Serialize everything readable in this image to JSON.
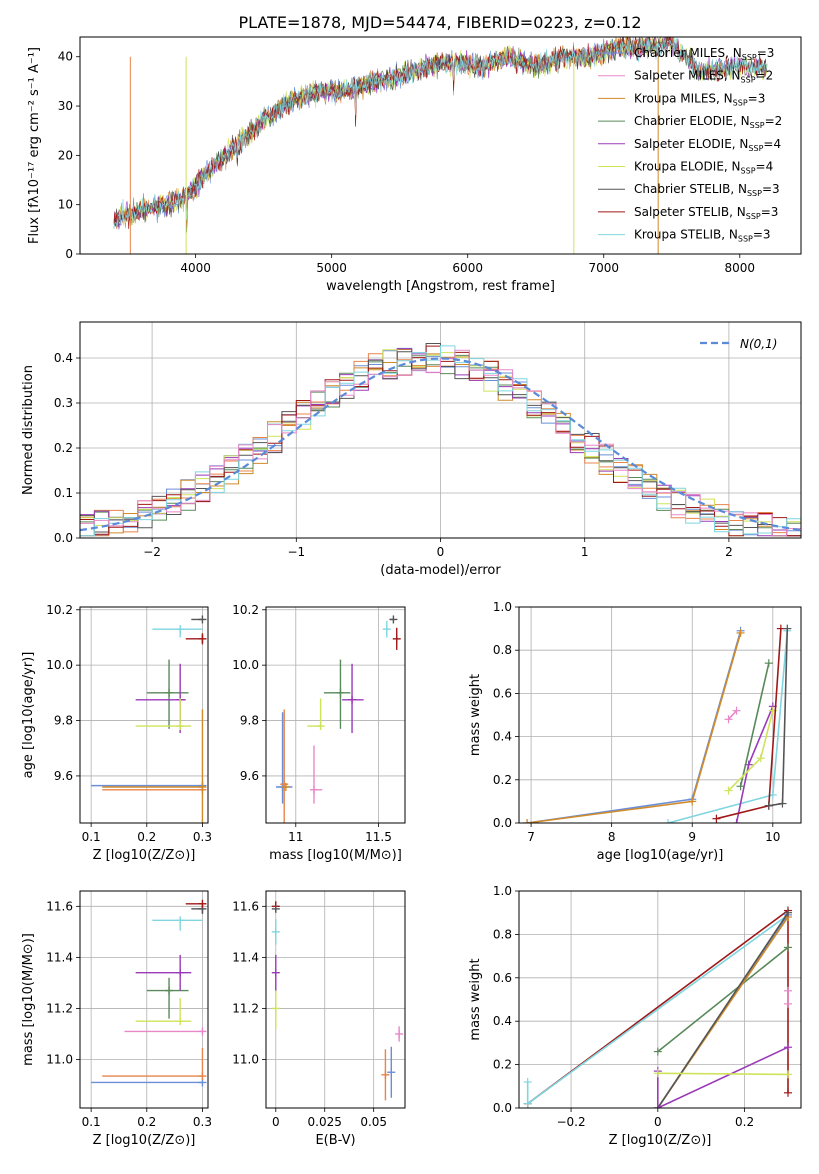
{
  "title": "PLATE=1878, MJD=54474, FIBERID=0223, z=0.12",
  "colors": {
    "chabrier_miles": "#6a8fd8",
    "salpeter_miles": "#e8844a",
    "kroupa_miles": "#d08a2a",
    "chabrier_elodie": "#5a8a5a",
    "salpeter_elodie": "#9b3ab8",
    "kroupa_elodie": "#cfe35a",
    "chabrier_stelib": "#555555",
    "salpeter_stelib": "#a01818",
    "kroupa_stelib": "#7fd6e0",
    "pink": "#e888c8",
    "normal": "#5a8ad8"
  },
  "legend": [
    {
      "label": "Chabrier MILES, N",
      "sub": "SSP",
      "suffix": "=3",
      "color": "#6a8fd8"
    },
    {
      "label": "Salpeter MILES, N",
      "sub": "SSP",
      "suffix": "=2",
      "color": "#e888c8"
    },
    {
      "label": "Kroupa MILES, N",
      "sub": "SSP",
      "suffix": "=3",
      "color": "#d08a2a"
    },
    {
      "label": "Chabrier ELODIE, N",
      "sub": "SSP",
      "suffix": "=2",
      "color": "#5a8a5a"
    },
    {
      "label": "Salpeter ELODIE, N",
      "sub": "SSP",
      "suffix": "=4",
      "color": "#9b3ab8"
    },
    {
      "label": "Kroupa ELODIE, N",
      "sub": "SSP",
      "suffix": "=4",
      "color": "#cfe35a"
    },
    {
      "label": "Chabrier STELIB, N",
      "sub": "SSP",
      "suffix": "=3",
      "color": "#555555"
    },
    {
      "label": "Salpeter STELIB, N",
      "sub": "SSP",
      "suffix": "=3",
      "color": "#a01818"
    },
    {
      "label": "Kroupa STELIB, N",
      "sub": "SSP",
      "suffix": "=3",
      "color": "#7fd6e0"
    }
  ],
  "chart_data": [
    {
      "type": "line",
      "id": "spectrum",
      "xlabel": "wavelength [Angstrom, rest frame]",
      "ylabel": "Flux [fλ10⁻¹⁷ erg cm⁻² s⁻¹ A⁻¹]",
      "xlim": [
        3150,
        8450
      ],
      "ylim": [
        0,
        44
      ],
      "xticks": [
        4000,
        5000,
        6000,
        7000,
        8000
      ],
      "yticks": [
        0,
        10,
        20,
        30,
        40
      ],
      "anchors_x": [
        3400,
        3600,
        3800,
        3950,
        4100,
        4300,
        4500,
        4700,
        4900,
        5100,
        5300,
        5500,
        5700,
        5900,
        6100,
        6300,
        6500,
        6700,
        6900,
        7100,
        7300,
        7500,
        7700,
        7900,
        8200
      ],
      "anchors_y": [
        7,
        9,
        10,
        12,
        17,
        22,
        27,
        31,
        33,
        33,
        35,
        36,
        38,
        39,
        38,
        40,
        38,
        40,
        40,
        42,
        42,
        43,
        37,
        38,
        38
      ],
      "grid": false
    },
    {
      "type": "step",
      "id": "residuals",
      "xlabel": "(data-model)/error",
      "ylabel": "Normed distribution",
      "xlim": [
        -2.5,
        2.5
      ],
      "ylim": [
        0,
        0.48
      ],
      "xticks": [
        -2,
        -1,
        0,
        1,
        2
      ],
      "yticks": [
        0.0,
        0.1,
        0.2,
        0.3,
        0.4
      ],
      "normal_label": "N(0,1)",
      "grid": true
    },
    {
      "type": "scatter",
      "id": "age_vs_Z",
      "xlabel": "Z [log10(Z/Z⊙)]",
      "ylabel": "age [log10(age/yr)]",
      "xlim": [
        0.08,
        0.31
      ],
      "ylim": [
        9.43,
        10.21
      ],
      "xticks": [
        0.1,
        0.2,
        0.3
      ],
      "yticks": [
        9.6,
        9.8,
        10.0,
        10.2
      ],
      "points": [
        {
          "c": "chabrier_miles",
          "x": 0.3,
          "y": 9.565,
          "xe": [
            0.2,
            0.0
          ],
          "ye": [
            0.0,
            0.0
          ]
        },
        {
          "c": "salpeter_miles",
          "x": 0.3,
          "y": 9.55,
          "xe": [
            0.18,
            0.0
          ],
          "ye": [
            0.0,
            0.0
          ]
        },
        {
          "c": "kroupa_miles",
          "x": 0.3,
          "y": 9.56,
          "xe": [
            0.18,
            0.0
          ],
          "ye": [
            0.13,
            0.28
          ]
        },
        {
          "c": "chabrier_elodie",
          "x": 0.24,
          "y": 9.9,
          "xe": [
            0.04,
            0.035
          ],
          "ye": [
            0.13,
            0.12
          ]
        },
        {
          "c": "salpeter_elodie",
          "x": 0.26,
          "y": 9.875,
          "xe": [
            0.08,
            0.01
          ],
          "ye": [
            0.12,
            0.13
          ]
        },
        {
          "c": "kroupa_elodie",
          "x": 0.26,
          "y": 9.78,
          "xe": [
            0.08,
            0.02
          ],
          "ye": [
            0.0,
            0.1
          ]
        },
        {
          "c": "chabrier_stelib",
          "x": 0.3,
          "y": 10.165,
          "xe": [
            0.02,
            0.0
          ],
          "ye": [
            0.0,
            0.0
          ]
        },
        {
          "c": "salpeter_stelib",
          "x": 0.3,
          "y": 10.095,
          "xe": [
            0.03,
            0.0
          ],
          "ye": [
            0.02,
            0.02
          ]
        },
        {
          "c": "kroupa_stelib",
          "x": 0.26,
          "y": 10.13,
          "xe": [
            0.05,
            0.04
          ],
          "ye": [
            0.03,
            0.0
          ]
        }
      ]
    },
    {
      "type": "scatter",
      "id": "age_vs_mass",
      "xlabel": "mass [log10(M/M⊙)]",
      "ylabel": "",
      "xlim": [
        10.82,
        11.66
      ],
      "ylim": [
        9.43,
        10.21
      ],
      "xticks": [
        11.0,
        11.5
      ],
      "yticks": [
        9.6,
        9.8,
        10.0,
        10.2
      ],
      "points": [
        {
          "c": "chabrier_miles",
          "x": 10.92,
          "y": 9.56,
          "xe": [
            0.04,
            0.06
          ],
          "ye": [
            0.06,
            0.27
          ]
        },
        {
          "c": "salpeter_miles",
          "x": 10.93,
          "y": 9.57,
          "xe": [
            0.0,
            0.0
          ],
          "ye": [
            0.14,
            0.27
          ]
        },
        {
          "c": "kroupa_miles",
          "x": 10.94,
          "y": 9.56,
          "xe": [
            0.0,
            0.0
          ],
          "ye": [
            0.0,
            0.0
          ]
        },
        {
          "c": "chabrier_elodie",
          "x": 11.27,
          "y": 9.9,
          "xe": [
            0.1,
            0.06
          ],
          "ye": [
            0.13,
            0.12
          ]
        },
        {
          "c": "salpeter_elodie",
          "x": 11.34,
          "y": 9.875,
          "xe": [
            0.06,
            0.07
          ],
          "ye": [
            0.12,
            0.13
          ]
        },
        {
          "c": "kroupa_elodie",
          "x": 11.15,
          "y": 9.78,
          "xe": [
            0.08,
            0.0
          ],
          "ye": [
            0.0,
            0.1
          ]
        },
        {
          "c": "pink",
          "x": 11.11,
          "y": 9.55,
          "xe": [
            0.0,
            0.05
          ],
          "ye": [
            0.05,
            0.16
          ]
        },
        {
          "c": "chabrier_stelib",
          "x": 11.59,
          "y": 10.165,
          "xe": [
            0.02,
            0.0
          ],
          "ye": [
            0.0,
            0.0
          ]
        },
        {
          "c": "salpeter_stelib",
          "x": 11.61,
          "y": 10.095,
          "xe": [
            0.0,
            0.0
          ],
          "ye": [
            0.04,
            0.04
          ]
        },
        {
          "c": "kroupa_stelib",
          "x": 11.55,
          "y": 10.13,
          "xe": [
            0.0,
            0.0
          ],
          "ye": [
            0.03,
            0.03
          ]
        }
      ]
    },
    {
      "type": "line",
      "id": "massweight_vs_age",
      "xlabel": "age [log10(age/yr)]",
      "ylabel": "mass weight",
      "xlim": [
        6.85,
        10.35
      ],
      "ylim": [
        0.0,
        1.0
      ],
      "xticks": [
        7,
        8,
        9,
        10
      ],
      "yticks": [
        0.0,
        0.2,
        0.4,
        0.6,
        0.8,
        1.0
      ],
      "lines": [
        {
          "c": "chabrier_miles",
          "x": [
            6.95,
            9.0,
            9.6
          ],
          "y": [
            0.0,
            0.11,
            0.89
          ]
        },
        {
          "c": "kroupa_miles",
          "x": [
            6.95,
            9.0,
            9.6
          ],
          "y": [
            0.0,
            0.1,
            0.88
          ]
        },
        {
          "c": "kroupa_stelib",
          "x": [
            8.7,
            10.0,
            10.18
          ],
          "y": [
            0.0,
            0.13,
            0.89
          ]
        },
        {
          "c": "salpeter_elodie",
          "x": [
            9.55,
            9.7,
            10.0
          ],
          "y": [
            0.0,
            0.27,
            0.54
          ]
        },
        {
          "c": "chabrier_elodie",
          "x": [
            9.6,
            9.95
          ],
          "y": [
            0.17,
            0.74
          ]
        },
        {
          "c": "kroupa_elodie",
          "x": [
            9.45,
            9.85,
            10.0
          ],
          "y": [
            0.15,
            0.3,
            0.52
          ]
        },
        {
          "c": "salpeter_stelib",
          "x": [
            9.3,
            9.95,
            10.1
          ],
          "y": [
            0.02,
            0.08,
            0.9
          ]
        },
        {
          "c": "chabrier_stelib",
          "x": [
            9.95,
            10.12,
            10.18
          ],
          "y": [
            0.08,
            0.09,
            0.9
          ]
        },
        {
          "c": "pink",
          "x": [
            9.45,
            9.55
          ],
          "y": [
            0.48,
            0.52
          ]
        }
      ]
    },
    {
      "type": "scatter",
      "id": "mass_vs_Z",
      "xlabel": "Z [log10(Z/Z⊙)]",
      "ylabel": "mass [log10(M/M⊙)]",
      "xlim": [
        0.08,
        0.31
      ],
      "ylim": [
        10.81,
        11.66
      ],
      "xticks": [
        0.1,
        0.2,
        0.3
      ],
      "yticks": [
        11.0,
        11.2,
        11.4,
        11.6
      ],
      "points": [
        {
          "c": "chabrier_miles",
          "x": 0.3,
          "y": 10.91,
          "xe": [
            0.2,
            0.0
          ],
          "ye": [
            0.0,
            0.0
          ]
        },
        {
          "c": "salpeter_miles",
          "x": 0.3,
          "y": 10.935,
          "xe": [
            0.18,
            0.0
          ],
          "ye": [
            0.0,
            0.11
          ]
        },
        {
          "c": "pink",
          "x": 0.3,
          "y": 11.11,
          "xe": [
            0.14,
            0.0
          ],
          "ye": [
            0.0,
            0.0
          ]
        },
        {
          "c": "kroupa_elodie",
          "x": 0.26,
          "y": 11.15,
          "xe": [
            0.08,
            0.02
          ],
          "ye": [
            0.0,
            0.09
          ]
        },
        {
          "c": "chabrier_elodie",
          "x": 0.24,
          "y": 11.27,
          "xe": [
            0.04,
            0.035
          ],
          "ye": [
            0.11,
            0.05
          ]
        },
        {
          "c": "salpeter_elodie",
          "x": 0.26,
          "y": 11.34,
          "xe": [
            0.08,
            0.02
          ],
          "ye": [
            0.07,
            0.07
          ]
        },
        {
          "c": "kroupa_stelib",
          "x": 0.26,
          "y": 11.545,
          "xe": [
            0.05,
            0.04
          ],
          "ye": [
            0.04,
            0.0
          ]
        },
        {
          "c": "chabrier_stelib",
          "x": 0.3,
          "y": 11.59,
          "xe": [
            0.02,
            0.0
          ],
          "ye": [
            0.02,
            0.02
          ]
        },
        {
          "c": "salpeter_stelib",
          "x": 0.3,
          "y": 11.61,
          "xe": [
            0.03,
            0.0
          ],
          "ye": [
            0.0,
            0.0
          ]
        }
      ]
    },
    {
      "type": "scatter",
      "id": "mass_vs_ebv",
      "xlabel": "E(B-V)",
      "ylabel": "",
      "xlim": [
        -0.005,
        0.066
      ],
      "ylim": [
        10.81,
        11.66
      ],
      "xticks": [
        0.0,
        0.025,
        0.05
      ],
      "yticks": [
        11.0,
        11.2,
        11.4,
        11.6
      ],
      "points": [
        {
          "c": "kroupa_elodie",
          "x": 0.0,
          "y": 11.2,
          "xe": [
            0.0,
            0.0
          ],
          "ye": [
            0.08,
            0.08
          ]
        },
        {
          "c": "salpeter_elodie",
          "x": 0.0,
          "y": 11.34,
          "xe": [
            0.0,
            0.0
          ],
          "ye": [
            0.07,
            0.07
          ]
        },
        {
          "c": "kroupa_stelib",
          "x": 0.0,
          "y": 11.5,
          "xe": [
            0.0,
            0.0
          ],
          "ye": [
            0.05,
            0.05
          ]
        },
        {
          "c": "salpeter_stelib",
          "x": 0.0,
          "y": 11.6,
          "xe": [
            0.0,
            0.0
          ],
          "ye": [
            0.02,
            0.02
          ]
        },
        {
          "c": "chabrier_stelib",
          "x": 0.0,
          "y": 11.59,
          "xe": [
            0.0,
            0.0
          ],
          "ye": [
            0.01,
            0.01
          ]
        },
        {
          "c": "salpeter_miles",
          "x": 0.056,
          "y": 10.94,
          "xe": [
            0.0,
            0.0
          ],
          "ye": [
            0.1,
            0.1
          ]
        },
        {
          "c": "chabrier_miles",
          "x": 0.059,
          "y": 10.95,
          "xe": [
            0.0,
            0.0
          ],
          "ye": [
            0.1,
            0.1
          ]
        },
        {
          "c": "pink",
          "x": 0.063,
          "y": 11.1,
          "xe": [
            0.0,
            0.0
          ],
          "ye": [
            0.03,
            0.03
          ]
        }
      ]
    },
    {
      "type": "line",
      "id": "massweight_vs_Z",
      "xlabel": "Z [log10(Z/Z⊙)]",
      "ylabel": "mass weight",
      "xlim": [
        -0.32,
        0.33
      ],
      "ylim": [
        0.0,
        1.0
      ],
      "xticks": [
        -0.2,
        0.0,
        0.2
      ],
      "yticks": [
        0.0,
        0.2,
        0.4,
        0.6,
        0.8,
        1.0
      ],
      "lines": [
        {
          "c": "salpeter_stelib",
          "x": [
            -0.3,
            0.3,
            0.3
          ],
          "y": [
            0.02,
            0.91,
            0.07
          ]
        },
        {
          "c": "kroupa_stelib",
          "x": [
            -0.3,
            -0.3,
            0.3
          ],
          "y": [
            0.12,
            0.02,
            0.89
          ]
        },
        {
          "c": "chabrier_elodie",
          "x": [
            0.0,
            0.3
          ],
          "y": [
            0.26,
            0.74
          ]
        },
        {
          "c": "chabrier_miles",
          "x": [
            0.0,
            0.3
          ],
          "y": [
            0.0,
            0.89
          ]
        },
        {
          "c": "kroupa_miles",
          "x": [
            0.0,
            0.3
          ],
          "y": [
            0.0,
            0.88
          ]
        },
        {
          "c": "chabrier_stelib",
          "x": [
            0.0,
            0.3
          ],
          "y": [
            0.0,
            0.9
          ]
        },
        {
          "c": "salpeter_elodie",
          "x": [
            0.0,
            0.0,
            0.3
          ],
          "y": [
            0.17,
            0.0,
            0.28
          ]
        },
        {
          "c": "kroupa_elodie",
          "x": [
            0.0,
            0.3
          ],
          "y": [
            0.16,
            0.155
          ]
        },
        {
          "c": "pink",
          "x": [
            0.3,
            0.3
          ],
          "y": [
            0.48,
            0.54
          ]
        }
      ]
    }
  ]
}
